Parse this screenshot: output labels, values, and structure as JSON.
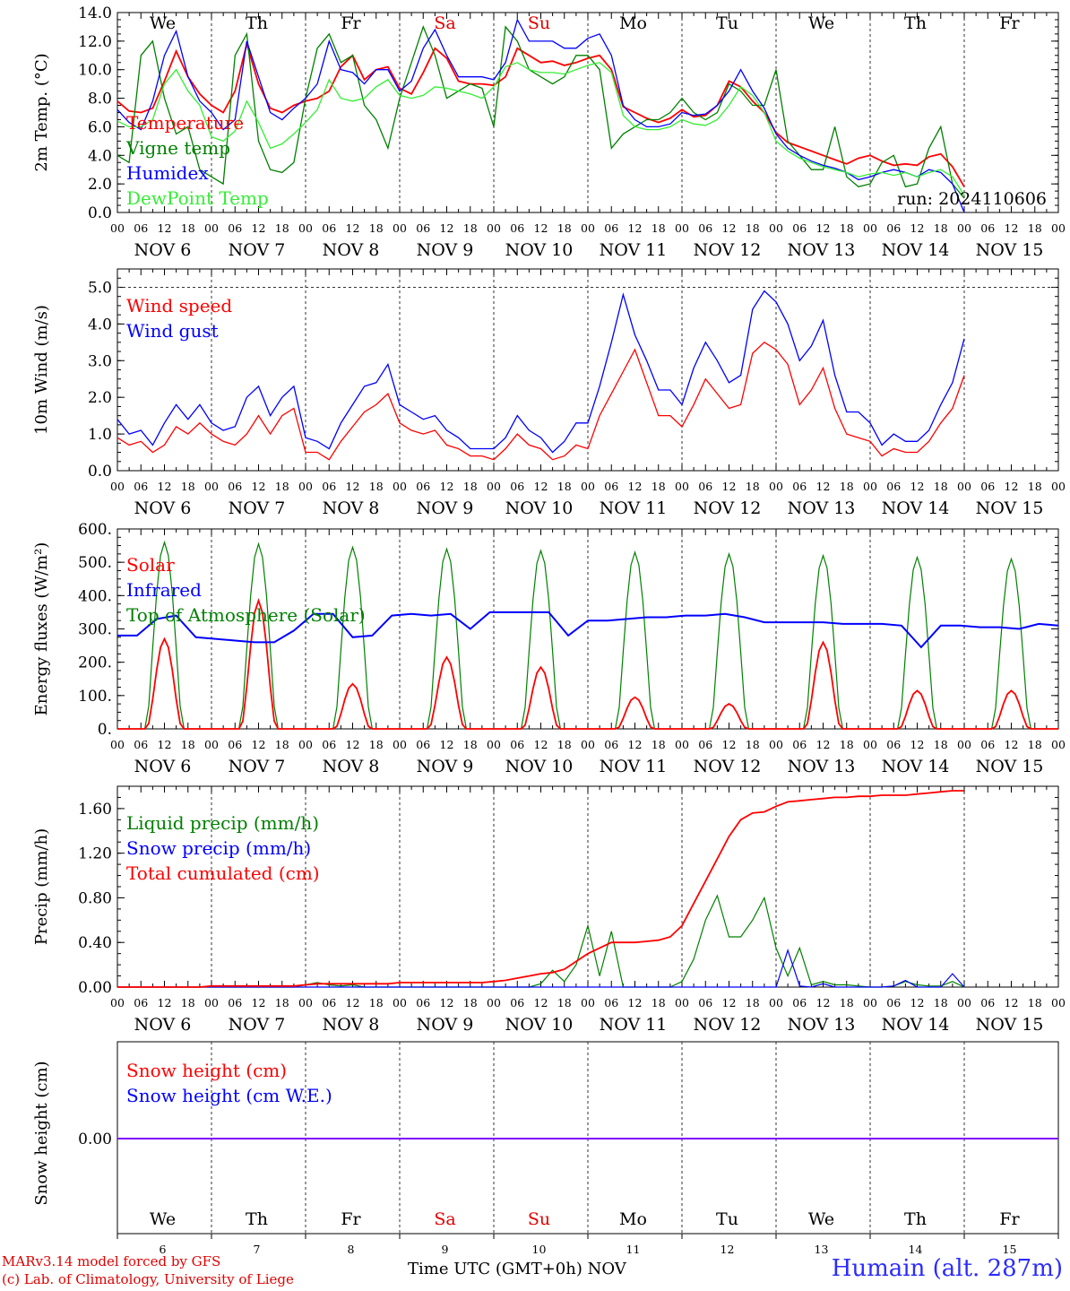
{
  "run_label": "run: 2024110606",
  "footer": {
    "model": "MARv3.14 model forced by GFS",
    "lab": "(c) Lab. of Climatology, University of Liege",
    "x_title": "Time UTC (GMT+0h)",
    "month": "NOV",
    "station": "Humain (alt. 287m)"
  },
  "days": {
    "weekday": [
      "We",
      "Th",
      "Fr",
      "Sa",
      "Su",
      "Mo",
      "Tu",
      "We",
      "Th",
      "Fr"
    ],
    "weekend_color": "#e00000",
    "date_labels": [
      "NOV  6",
      "NOV  7",
      "NOV  8",
      "NOV  9",
      "NOV 10",
      "NOV 11",
      "NOV 12",
      "NOV 13",
      "NOV 14",
      "NOV 15"
    ],
    "day_numbers": [
      "6",
      "7",
      "8",
      "9",
      "10",
      "11",
      "12",
      "13",
      "14",
      "15"
    ],
    "hour_ticks": [
      "00",
      "06",
      "12",
      "18"
    ],
    "end_tick": "00"
  },
  "colors": {
    "red": "#ff0000",
    "green": "#008000",
    "blue": "#0000ff",
    "lightgreen": "#33ee33",
    "purple": "#7f00ff"
  },
  "chart_data": [
    {
      "type": "line",
      "ylabel": "2m Temp. (°C)",
      "ylim": [
        0,
        14
      ],
      "y_ticks": [
        "0.0",
        "2.0",
        "4.0",
        "6.0",
        "8.0",
        "10.0",
        "12.0",
        "14.0"
      ],
      "x_unit": "hours since NOV 6 00 UTC, 3-hourly",
      "x_step_hours": 3,
      "series": [
        {
          "name": "Temperature",
          "color": "#ff0000",
          "values": [
            7.8,
            7.1,
            7.0,
            7.3,
            9.2,
            11.3,
            9.5,
            8.3,
            7.5,
            7.0,
            8.5,
            11.8,
            9.0,
            7.3,
            7.0,
            7.5,
            7.8,
            8.0,
            8.5,
            10.2,
            11.0,
            9.3,
            10.0,
            10.2,
            8.7,
            8.3,
            9.8,
            11.5,
            10.8,
            9.2,
            9.0,
            9.0,
            8.9,
            9.5,
            11.5,
            11.0,
            10.5,
            10.6,
            10.3,
            10.5,
            10.8,
            11.0,
            10.0,
            7.4,
            7.0,
            6.6,
            6.3,
            6.6,
            7.2,
            6.7,
            6.8,
            7.5,
            9.2,
            8.8,
            7.8,
            7.0,
            5.6,
            4.9,
            4.6,
            4.3,
            4.0,
            3.7,
            3.4,
            3.8,
            4.0,
            3.6,
            3.3,
            3.4,
            3.3,
            3.9,
            4.1,
            3.2,
            1.8
          ]
        },
        {
          "name": "Vigne temp",
          "color": "#008000",
          "values": [
            4.0,
            3.5,
            11.0,
            12.0,
            8.0,
            5.5,
            6.0,
            3.0,
            2.5,
            2.0,
            11.0,
            12.5,
            5.0,
            3.0,
            2.8,
            3.5,
            8.0,
            11.5,
            12.5,
            10.5,
            11.0,
            7.5,
            6.5,
            4.5,
            8.0,
            10.5,
            13.0,
            11.0,
            8.0,
            8.5,
            9.0,
            8.7,
            6.0,
            13.0,
            12.0,
            10.0,
            9.5,
            9.0,
            9.5,
            11.0,
            11.0,
            10.0,
            4.5,
            5.5,
            6.0,
            6.5,
            6.5,
            7.0,
            8.0,
            7.0,
            6.5,
            7.0,
            9.0,
            8.5,
            7.5,
            7.5,
            10.0,
            5.0,
            4.0,
            3.0,
            3.0,
            6.0,
            2.5,
            1.8,
            2.0,
            3.5,
            4.0,
            1.8,
            2.0,
            4.5,
            6.0,
            2.0,
            1.0
          ]
        },
        {
          "name": "Humidex",
          "color": "#0000ff",
          "values": [
            7.2,
            6.3,
            5.8,
            7.8,
            11.0,
            12.7,
            9.5,
            7.8,
            7.0,
            5.8,
            6.5,
            12.0,
            9.5,
            7.0,
            6.5,
            7.3,
            8.0,
            9.0,
            12.0,
            10.0,
            9.8,
            9.0,
            10.0,
            10.0,
            8.5,
            9.2,
            11.5,
            12.8,
            11.0,
            9.5,
            9.5,
            9.5,
            9.3,
            10.5,
            13.5,
            12.0,
            12.0,
            12.0,
            11.5,
            11.5,
            12.2,
            12.5,
            11.0,
            7.5,
            6.5,
            6.0,
            6.0,
            6.2,
            7.0,
            6.8,
            6.9,
            7.5,
            8.5,
            10.0,
            8.5,
            7.3,
            5.5,
            4.5,
            4.0,
            3.6,
            3.3,
            3.1,
            2.8,
            2.3,
            2.5,
            2.8,
            3.0,
            2.8,
            2.5,
            3.0,
            2.8,
            2.0,
            0.0
          ]
        },
        {
          "name": "DewPoint Temp",
          "color": "#33ee33",
          "values": [
            6.4,
            6.0,
            6.0,
            6.5,
            9.0,
            10.0,
            8.5,
            7.5,
            5.3,
            5.0,
            5.7,
            7.8,
            6.3,
            4.5,
            4.8,
            5.5,
            6.3,
            7.2,
            9.3,
            8.0,
            7.8,
            8.0,
            8.8,
            9.3,
            8.2,
            8.0,
            8.2,
            8.8,
            8.7,
            8.5,
            8.3,
            8.0,
            8.8,
            10.2,
            10.5,
            10.0,
            9.8,
            9.8,
            9.7,
            10.0,
            10.3,
            10.5,
            9.8,
            6.8,
            6.0,
            5.8,
            5.8,
            6.0,
            6.5,
            6.2,
            6.1,
            6.5,
            7.5,
            8.8,
            8.2,
            7.0,
            5.0,
            4.3,
            3.8,
            3.5,
            3.2,
            3.0,
            2.8,
            2.5,
            2.7,
            2.8,
            2.6,
            2.8,
            2.5,
            2.8,
            3.0,
            2.5,
            1.2
          ]
        }
      ]
    },
    {
      "type": "line",
      "ylabel": "10m Wind (m/s)",
      "ylim": [
        0,
        5.5
      ],
      "y_ticks": [
        "0.0",
        "1.0",
        "2.0",
        "3.0",
        "4.0",
        "5.0"
      ],
      "reference_line": 5.0,
      "x_step_hours": 3,
      "series": [
        {
          "name": "Wind speed",
          "color": "#ff0000",
          "values": [
            0.9,
            0.7,
            0.8,
            0.5,
            0.7,
            1.2,
            1.0,
            1.3,
            1.0,
            0.8,
            0.7,
            1.0,
            1.5,
            1.0,
            1.5,
            1.7,
            0.5,
            0.5,
            0.3,
            0.8,
            1.2,
            1.6,
            1.8,
            2.1,
            1.3,
            1.1,
            1.0,
            1.1,
            0.7,
            0.6,
            0.4,
            0.4,
            0.3,
            0.6,
            1.0,
            0.7,
            0.6,
            0.3,
            0.4,
            0.7,
            0.6,
            1.5,
            2.1,
            2.7,
            3.3,
            2.4,
            1.5,
            1.5,
            1.2,
            1.8,
            2.5,
            2.1,
            1.7,
            1.8,
            3.2,
            3.5,
            3.3,
            2.9,
            1.8,
            2.2,
            2.8,
            1.7,
            1.0,
            0.9,
            0.8,
            0.4,
            0.6,
            0.5,
            0.5,
            0.8,
            1.3,
            1.7,
            2.6
          ]
        },
        {
          "name": "Wind gust",
          "color": "#0000ff",
          "values": [
            1.4,
            1.0,
            1.1,
            0.7,
            1.3,
            1.8,
            1.4,
            1.8,
            1.3,
            1.1,
            1.2,
            2.0,
            2.3,
            1.5,
            2.0,
            2.3,
            0.9,
            0.8,
            0.6,
            1.3,
            1.8,
            2.3,
            2.4,
            2.9,
            1.8,
            1.6,
            1.4,
            1.5,
            1.1,
            0.9,
            0.6,
            0.6,
            0.6,
            0.9,
            1.5,
            1.1,
            0.9,
            0.5,
            0.8,
            1.3,
            1.3,
            2.3,
            3.5,
            4.8,
            3.7,
            3.0,
            2.2,
            2.2,
            1.8,
            2.8,
            3.5,
            3.0,
            2.4,
            2.6,
            4.4,
            4.9,
            4.6,
            4.0,
            3.0,
            3.4,
            4.1,
            2.6,
            1.6,
            1.6,
            1.3,
            0.7,
            1.0,
            0.8,
            0.8,
            1.1,
            1.8,
            2.4,
            3.6
          ]
        }
      ]
    },
    {
      "type": "line",
      "ylabel": "Energy fluxes (W/m²)",
      "ylim": [
        0,
        600
      ],
      "y_ticks": [
        "0.",
        "100.",
        "200.",
        "300.",
        "400.",
        "500.",
        "600."
      ],
      "x_step_hours": 1,
      "day_profiles": {
        "Solar": {
          "color": "#ff0000",
          "peaks": [
            270,
            385,
            135,
            215,
            185,
            95,
            75,
            260,
            115,
            115
          ]
        },
        "Top of Atmosphere (Solar)": {
          "color": "#008000",
          "peaks": [
            560,
            555,
            545,
            540,
            535,
            530,
            525,
            520,
            515,
            510
          ]
        }
      },
      "series": [
        {
          "name": "Solar",
          "color": "#ff0000"
        },
        {
          "name": "Infrared",
          "color": "#0000ff",
          "values": [
            280,
            280,
            330,
            340,
            275,
            270,
            265,
            260,
            260,
            295,
            345,
            345,
            275,
            280,
            340,
            345,
            340,
            345,
            300,
            350,
            350,
            350,
            350,
            280,
            325,
            325,
            330,
            335,
            335,
            340,
            340,
            345,
            335,
            320,
            320,
            320,
            320,
            315,
            315,
            315,
            310,
            245,
            310,
            310,
            305,
            305,
            300,
            315,
            310
          ]
        },
        {
          "name": "Top of Atmosphere (Solar)",
          "color": "#008000"
        }
      ]
    },
    {
      "type": "line",
      "ylabel": "Precip (mm/h)",
      "ylim": [
        0,
        1.8
      ],
      "y_ticks": [
        "0.00",
        "0.40",
        "0.80",
        "1.20",
        "1.60"
      ],
      "x_step_hours": 3,
      "series": [
        {
          "name": "Liquid precip (mm/h)",
          "color": "#008000",
          "values": [
            0,
            0,
            0,
            0,
            0,
            0,
            0,
            0,
            0,
            0,
            0,
            0,
            0,
            0,
            0,
            0,
            0.02,
            0.04,
            0.02,
            0.01,
            0.02,
            0,
            0,
            0,
            0,
            0,
            0,
            0,
            0,
            0,
            0,
            0,
            0,
            0,
            0,
            0,
            0.03,
            0.15,
            0.05,
            0.2,
            0.55,
            0.1,
            0.5,
            0,
            0,
            0,
            0,
            0,
            0.05,
            0.25,
            0.6,
            0.82,
            0.45,
            0.45,
            0.6,
            0.8,
            0.35,
            0.1,
            0.35,
            0.02,
            0.05,
            0.02,
            0.02,
            0.01,
            0,
            0,
            0.01,
            0.05,
            0.02,
            0.01,
            0.01,
            0.05,
            0
          ]
        },
        {
          "name": "Snow precip (mm/h)",
          "color": "#0000ff",
          "values": [
            0,
            0,
            0,
            0,
            0,
            0,
            0,
            0,
            0,
            0,
            0,
            0,
            0,
            0,
            0,
            0,
            0,
            0,
            0,
            0,
            0,
            0,
            0,
            0,
            0,
            0,
            0,
            0,
            0,
            0,
            0,
            0,
            0,
            0,
            0,
            0,
            0,
            0,
            0,
            0,
            0,
            0,
            0,
            0,
            0,
            0,
            0,
            0,
            0,
            0,
            0,
            0,
            0,
            0,
            0,
            0,
            0,
            0.33,
            0.01,
            0,
            0.03,
            0,
            0,
            0,
            0,
            0,
            0.01,
            0.06,
            0,
            0,
            0,
            0.12,
            0
          ]
        },
        {
          "name": "Total cumulated (cm)",
          "color": "#ff0000",
          "values": [
            0,
            0,
            0,
            0,
            0,
            0,
            0,
            0,
            0.01,
            0.01,
            0.01,
            0.01,
            0.01,
            0.01,
            0.01,
            0.01,
            0.02,
            0.03,
            0.03,
            0.03,
            0.03,
            0.03,
            0.03,
            0.03,
            0.04,
            0.04,
            0.04,
            0.04,
            0.04,
            0.04,
            0.04,
            0.04,
            0.05,
            0.06,
            0.08,
            0.1,
            0.12,
            0.13,
            0.16,
            0.23,
            0.3,
            0.35,
            0.4,
            0.4,
            0.4,
            0.41,
            0.42,
            0.45,
            0.55,
            0.75,
            0.95,
            1.15,
            1.35,
            1.5,
            1.56,
            1.57,
            1.62,
            1.66,
            1.67,
            1.68,
            1.69,
            1.7,
            1.7,
            1.71,
            1.71,
            1.72,
            1.72,
            1.72,
            1.73,
            1.74,
            1.75,
            1.76,
            1.76
          ]
        }
      ]
    },
    {
      "type": "line",
      "ylabel": "Snow height (cm)",
      "y_ticks": [
        "0.00"
      ],
      "series": [
        {
          "name": "Snow height (cm)",
          "color": "#ff0000",
          "values": [
            0
          ]
        },
        {
          "name": "Snow height (cm W.E.)",
          "color": "#0000ff",
          "values": [
            0
          ]
        }
      ]
    }
  ]
}
